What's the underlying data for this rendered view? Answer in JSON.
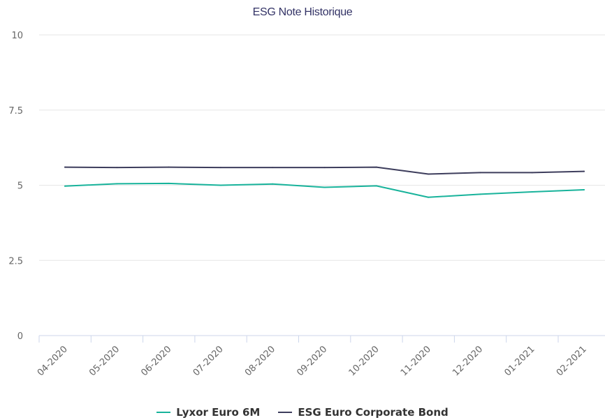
{
  "chart_data": {
    "type": "line",
    "title": "ESG Note Historique",
    "xlabel": "",
    "ylabel": "",
    "ylim": [
      0,
      10
    ],
    "yticks": [
      "0",
      "2.5",
      "5",
      "7.5",
      "10"
    ],
    "categories": [
      "04-2020",
      "05-2020",
      "06-2020",
      "07-2020",
      "08-2020",
      "09-2020",
      "10-2020",
      "11-2020",
      "12-2020",
      "01-2021",
      "02-2021"
    ],
    "grid": true,
    "legend_position": "bottom",
    "series": [
      {
        "name": "Lyxor Euro 6M",
        "color": "#18b39b",
        "values": [
          4.97,
          5.05,
          5.06,
          5.0,
          5.04,
          4.93,
          4.98,
          4.6,
          4.7,
          4.78,
          4.85
        ]
      },
      {
        "name": "ESG Euro Corporate Bond",
        "color": "#3d3d5c",
        "values": [
          5.6,
          5.59,
          5.6,
          5.59,
          5.59,
          5.59,
          5.6,
          5.37,
          5.42,
          5.42,
          5.46
        ]
      }
    ]
  }
}
